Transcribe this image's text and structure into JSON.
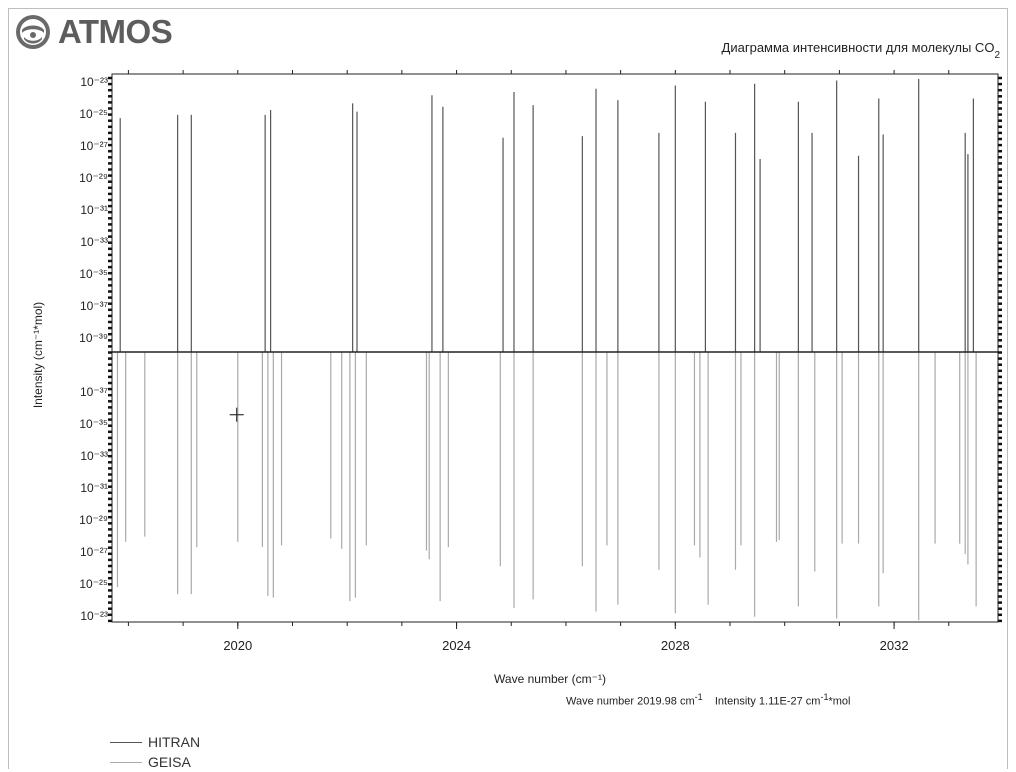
{
  "app": {
    "logo_text": "ATMOS",
    "chart_title_main": "Диаграмма интенсивности для молекулы CO",
    "chart_title_sub": "2"
  },
  "status": {
    "wave_label": "Wave number",
    "wave_value": "2019.98",
    "wave_unit": "cm",
    "wave_unit_exp": "-1",
    "intensity_label": "Intensity",
    "intensity_value": "1.11E-27",
    "intensity_unit": "cm",
    "intensity_unit_exp": "-1",
    "intensity_unit_tail": "*mol"
  },
  "legend": [
    {
      "name": "HITRAN",
      "color": "#555555"
    },
    {
      "name": "GEISA",
      "color": "#aaaaaa"
    }
  ],
  "colors": {
    "hitran": "#555555",
    "geisa": "#aaaaaa",
    "axis": "#222222",
    "tick_dark": "#111111"
  },
  "chart_data": {
    "type": "bar",
    "title": "Диаграмма интенсивности для молекулы CO2",
    "xlabel": "Wave number (cm⁻¹)",
    "ylabel": "Intensity (cm⁻¹*mol)",
    "x_ticks": [
      "2020",
      "2024",
      "2028",
      "2032"
    ],
    "x_tick_values": [
      2020,
      2024,
      2028,
      2032
    ],
    "xlim": [
      2017.7,
      2033.9
    ],
    "y_scale": "log",
    "y_ticks_top": [
      "10⁻²³",
      "10⁻²⁵",
      "10⁻²⁷",
      "10⁻²⁹",
      "10⁻³¹",
      "10⁻³³",
      "10⁻³⁵",
      "10⁻³⁷",
      "10⁻³⁹"
    ],
    "y_ticks_bottom": [
      "10⁻³⁷",
      "10⁻³⁵",
      "10⁻³³",
      "10⁻³¹",
      "10⁻²⁹",
      "10⁻²⁷",
      "10⁻²⁵",
      "10⁻²³"
    ],
    "y_exp_top_range": [
      -23,
      -40
    ],
    "y_exp_bottom_range": [
      -38.5,
      -23
    ],
    "cursor": {
      "x": 2019.98,
      "exp": -34.9
    },
    "series": [
      {
        "name": "HITRAN",
        "x": [
          2017.85,
          2018.9,
          2019.15,
          2020.5,
          2020.6,
          2022.1,
          2022.18,
          2023.55,
          2023.75,
          2024.85,
          2025.05,
          2025.4,
          2026.3,
          2026.55,
          2026.95,
          2027.7,
          2028.0,
          2028.55,
          2029.1,
          2029.45,
          2029.55,
          2030.25,
          2030.5,
          2030.95,
          2031.35,
          2031.72,
          2031.8,
          2032.45,
          2033.3,
          2033.35,
          2033.45
        ],
        "exp": [
          -25.7,
          -25.5,
          -25.5,
          -25.5,
          -25.2,
          -24.8,
          -25.3,
          -24.3,
          -25.0,
          -26.9,
          -24.1,
          -24.9,
          -26.8,
          -23.9,
          -24.6,
          -26.6,
          -23.7,
          -24.7,
          -26.6,
          -23.6,
          -28.2,
          -24.7,
          -26.6,
          -23.4,
          -28.0,
          -24.5,
          -26.7,
          -23.3,
          -26.6,
          -27.9,
          -24.5
        ]
      },
      {
        "name": "GEISA",
        "x": [
          2017.8,
          2017.95,
          2018.3,
          2018.9,
          2019.15,
          2019.25,
          2020.0,
          2020.45,
          2020.55,
          2020.65,
          2020.8,
          2021.7,
          2021.9,
          2022.05,
          2022.15,
          2022.35,
          2023.45,
          2023.5,
          2023.7,
          2023.85,
          2024.8,
          2025.05,
          2025.4,
          2026.3,
          2026.55,
          2026.75,
          2026.95,
          2027.7,
          2028.0,
          2028.35,
          2028.45,
          2028.6,
          2029.1,
          2029.2,
          2029.45,
          2029.85,
          2029.9,
          2030.25,
          2030.55,
          2030.95,
          2031.05,
          2031.35,
          2031.72,
          2031.8,
          2032.45,
          2032.75,
          2033.2,
          2033.3,
          2033.35,
          2033.5
        ],
        "exp": [
          -25.0,
          -27.6,
          -27.9,
          -24.6,
          -24.6,
          -27.3,
          -27.6,
          -27.3,
          -24.5,
          -24.4,
          -27.4,
          -27.8,
          -27.2,
          -24.2,
          -24.4,
          -27.4,
          -27.1,
          -26.6,
          -24.2,
          -27.3,
          -26.2,
          -23.8,
          -24.3,
          -26.2,
          -23.6,
          -27.4,
          -24.0,
          -26.0,
          -23.5,
          -27.4,
          -26.7,
          -24.0,
          -26.0,
          -27.4,
          -23.3,
          -27.6,
          -27.7,
          -23.9,
          -25.9,
          -23.2,
          -27.5,
          -27.5,
          -23.9,
          -25.8,
          -23.1,
          -27.5,
          -27.5,
          -26.9,
          -26.3,
          -23.9
        ]
      }
    ]
  }
}
